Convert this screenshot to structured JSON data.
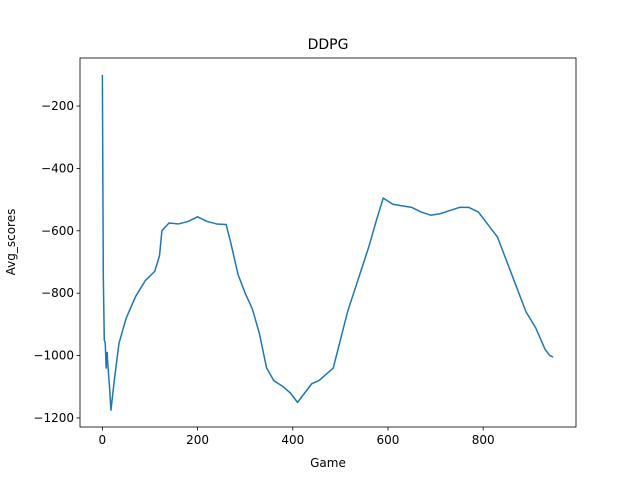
{
  "chart_data": {
    "type": "line",
    "title": "DDPG",
    "x_label": "Game",
    "y_label": "Avg_scores",
    "label_color": "#1f77b4",
    "x": [
      0,
      2,
      4,
      6,
      8,
      10,
      12,
      15,
      18,
      25,
      35,
      50,
      70,
      90,
      110,
      120,
      125,
      140,
      160,
      180,
      200,
      220,
      240,
      260,
      270,
      285,
      300,
      315,
      330,
      345,
      360,
      380,
      395,
      410,
      425,
      440,
      455,
      470,
      485,
      500,
      515,
      530,
      545,
      560,
      575,
      590,
      610,
      630,
      650,
      670,
      690,
      710,
      730,
      750,
      770,
      790,
      810,
      830,
      850,
      870,
      890,
      910,
      930,
      940,
      947
    ],
    "series": [
      {
        "name": "Avg_scores",
        "color": "#1f77b4",
        "values": [
          -100,
          -750,
          -950,
          -960,
          -1040,
          -990,
          -1040,
          -1100,
          -1175,
          -1080,
          -960,
          -880,
          -810,
          -760,
          -730,
          -680,
          -600,
          -575,
          -578,
          -570,
          -555,
          -570,
          -578,
          -580,
          -640,
          -740,
          -800,
          -850,
          -930,
          -1040,
          -1080,
          -1100,
          -1120,
          -1150,
          -1120,
          -1090,
          -1080,
          -1060,
          -1040,
          -950,
          -860,
          -790,
          -720,
          -650,
          -570,
          -495,
          -515,
          -520,
          -525,
          -540,
          -550,
          -545,
          -535,
          -525,
          -525,
          -540,
          -580,
          -620,
          -700,
          -780,
          -860,
          -910,
          -980,
          -1000,
          -1005
        ]
      }
    ],
    "xlim": [
      -47,
      995
    ],
    "ylim": [
      -1229,
      -46
    ],
    "xticks": [
      0,
      200,
      400,
      600,
      800
    ],
    "yticks": [
      {
        "value": -1200,
        "label": "−1200"
      },
      {
        "value": -1000,
        "label": "−1000"
      },
      {
        "value": -800,
        "label": "−800"
      },
      {
        "value": -600,
        "label": "−600"
      },
      {
        "value": -400,
        "label": "−400"
      },
      {
        "value": -200,
        "label": "−200"
      }
    ]
  }
}
